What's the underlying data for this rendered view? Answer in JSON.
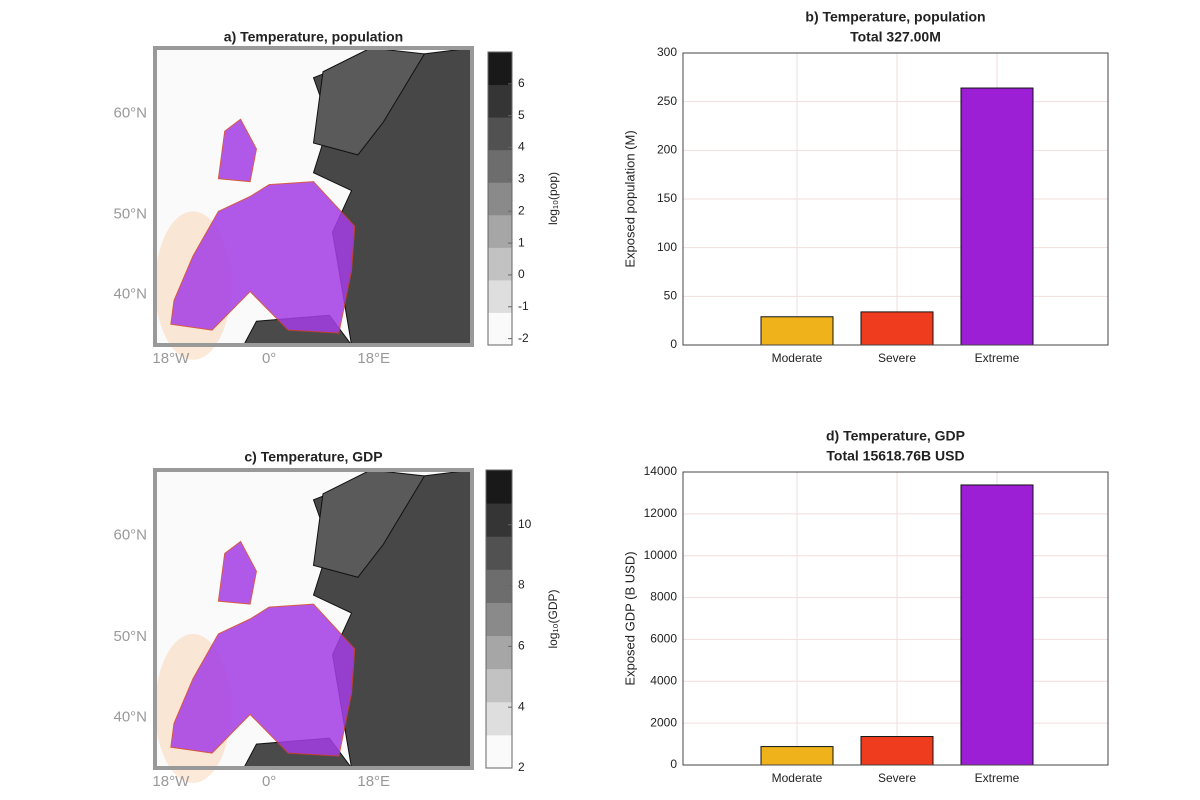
{
  "chart_data": [
    {
      "type": "map",
      "title": "a) Temperature, population",
      "lat_labels": [
        "60°N",
        "50°N",
        "40°N"
      ],
      "lon_labels": [
        "18°W",
        "0°",
        "18°E"
      ],
      "colorbar_label": "log₁₀(pop)",
      "colorbar_lim": [
        -2.2,
        7
      ],
      "colorbar_ticks": [
        -2,
        -1,
        0,
        1,
        2,
        3,
        4,
        5,
        6
      ]
    },
    {
      "type": "bar",
      "title": "b) Temperature, population",
      "subtitle": "Total 327.00M",
      "ylabel": "Exposed population (M)",
      "categories": [
        "Moderate",
        "Severe",
        "Extreme"
      ],
      "values": [
        29,
        34,
        264
      ],
      "colors": [
        "#f0b21a",
        "#f03c1e",
        "#9c1fd6"
      ],
      "ylim": [
        0,
        300
      ],
      "yticks": [
        0,
        50,
        100,
        150,
        200,
        250,
        300
      ],
      "grid": true
    },
    {
      "type": "map",
      "title": "c) Temperature, GDP",
      "lat_labels": [
        "60°N",
        "50°N",
        "40°N"
      ],
      "lon_labels": [
        "18°W",
        "0°",
        "18°E"
      ],
      "colorbar_label": "log₁₀(GDP)",
      "colorbar_lim": [
        2,
        11.8
      ],
      "colorbar_ticks": [
        2,
        4,
        6,
        8,
        10
      ]
    },
    {
      "type": "bar",
      "title": "d) Temperature, GDP",
      "subtitle": "Total 15618.76B USD",
      "ylabel": "Exposed GDP (B USD)",
      "categories": [
        "Moderate",
        "Severe",
        "Extreme"
      ],
      "values": [
        880,
        1360,
        13380
      ],
      "colors": [
        "#f0b21a",
        "#f03c1e",
        "#9c1fd6"
      ],
      "ylim": [
        0,
        14000
      ],
      "yticks": [
        0,
        2000,
        4000,
        6000,
        8000,
        10000,
        12000,
        14000
      ],
      "grid": true
    }
  ]
}
